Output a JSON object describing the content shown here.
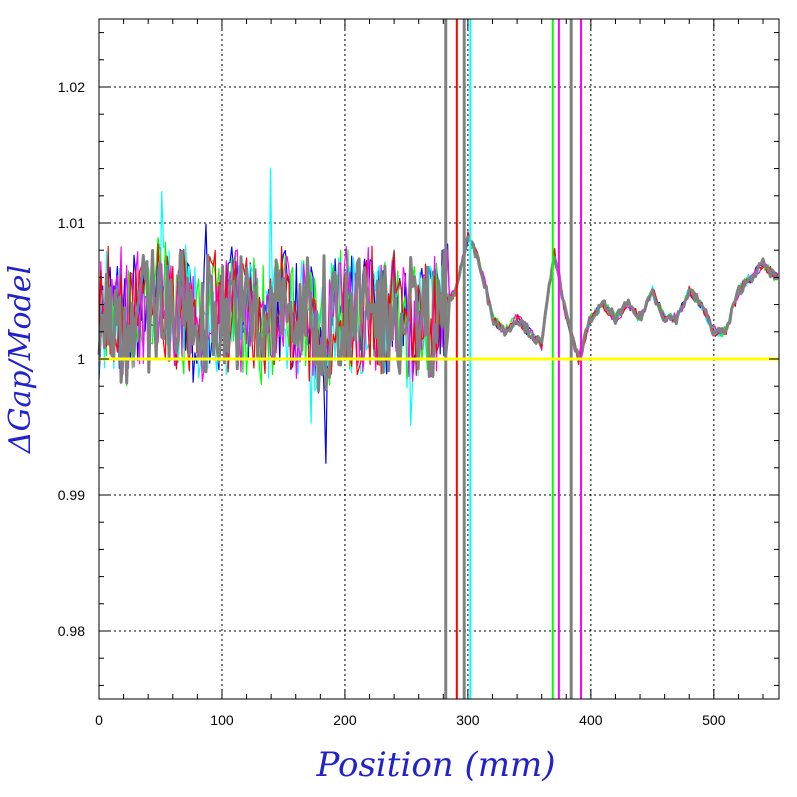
{
  "chart_data": {
    "type": "line",
    "xlabel": "Position (mm)",
    "ylabel": "ΔGap/Model",
    "xlim": [
      0,
      553
    ],
    "ylim": [
      0.975,
      1.025
    ],
    "x_ticks": [
      0,
      100,
      200,
      300,
      400,
      500
    ],
    "y_ticks": [
      0.98,
      0.99,
      1,
      1.01,
      1.02
    ],
    "x_tick_labels": [
      "0",
      "100",
      "200",
      "300",
      "400",
      "500"
    ],
    "y_tick_labels": [
      "0.98",
      "0.99",
      "1",
      "1.01",
      "1.02"
    ],
    "grid": true,
    "reference_line": {
      "y": 1.0,
      "color": "#ffff00"
    },
    "series_colors": [
      "#0000ff",
      "#00ffff",
      "#00ff00",
      "#ff00ff",
      "#ff0000",
      "#808080"
    ],
    "series": [
      {
        "color": "#808080",
        "x": [
          0,
          10,
          20,
          30,
          40,
          50,
          60,
          70,
          80,
          90,
          100,
          110,
          120,
          130,
          140,
          150,
          160,
          170,
          180,
          190,
          200,
          210,
          220,
          230,
          240,
          250,
          260,
          270,
          280,
          290,
          300,
          305,
          310,
          320,
          330,
          340,
          350,
          360,
          370,
          380,
          390,
          400,
          410,
          420,
          430,
          440,
          450,
          460,
          470,
          480,
          490,
          500,
          510,
          520,
          530,
          540,
          550
        ],
        "y": [
          1.003,
          1.004,
          1.002,
          1.004,
          1.003,
          1.005,
          1.003,
          1.004,
          1.002,
          1.004,
          1.003,
          1.004,
          1.003,
          1.002,
          1.003,
          1.004,
          1.003,
          1.003,
          1.001,
          1.003,
          1.004,
          1.003,
          1.004,
          1.003,
          1.004,
          1.002,
          1.003,
          1.003,
          1.004,
          1.005,
          1.009,
          1.008,
          1.007,
          1.003,
          1.002,
          1.003,
          1.002,
          1.001,
          1.008,
          1.003,
          1.0,
          1.003,
          1.004,
          1.003,
          1.004,
          1.003,
          1.005,
          1.003,
          1.003,
          1.005,
          1.004,
          1.002,
          1.002,
          1.005,
          1.006,
          1.007,
          1.006
        ]
      }
    ]
  }
}
